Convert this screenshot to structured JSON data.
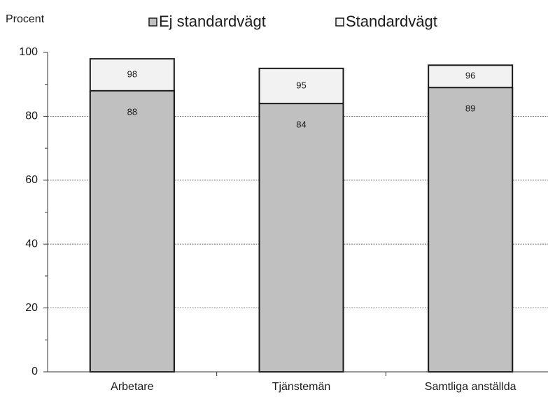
{
  "chart_data": {
    "type": "bar",
    "overlap": true,
    "ylabel": "Procent",
    "categories": [
      "Arbetare",
      "Tjänstemän",
      "Samtliga anställda"
    ],
    "series": [
      {
        "name": "Ej standardvägt",
        "color": "#c0c0c0",
        "values": [
          88,
          84,
          89
        ]
      },
      {
        "name": "Standardvägt",
        "color": "#f2f2f2",
        "values": [
          98,
          95,
          96
        ]
      }
    ],
    "ylim": [
      0,
      100
    ],
    "yticks": [
      0,
      20,
      40,
      60,
      80,
      100
    ],
    "grid": true
  }
}
